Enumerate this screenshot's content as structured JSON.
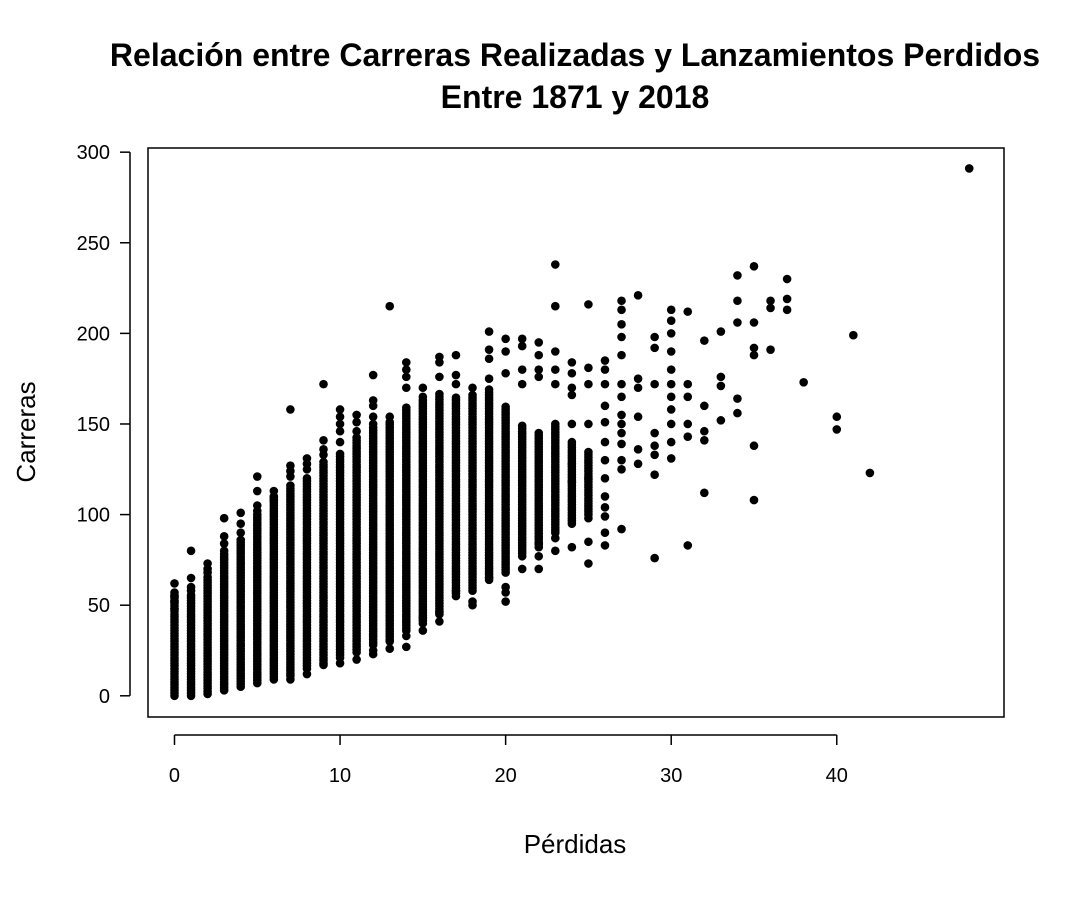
{
  "chart_data": {
    "type": "scatter",
    "title": [
      "Relación entre Carreras Realizadas y Lanzamientos Perdidos",
      "Entre 1871 y 2018"
    ],
    "xlabel": "Pérdidas",
    "ylabel": "Carreras",
    "xlim": [
      -1.6,
      50.1
    ],
    "ylim": [
      -11.7,
      302.3
    ],
    "xticks": [
      0,
      10,
      20,
      30,
      40
    ],
    "yticks": [
      0,
      50,
      100,
      150,
      200,
      250,
      300
    ],
    "grid": false,
    "point_color": "#000000",
    "dense_bands": [
      {
        "x": 0,
        "ymin": 0,
        "ymax": 58
      },
      {
        "x": 1,
        "ymin": 0,
        "ymax": 56
      },
      {
        "x": 2,
        "ymin": 1,
        "ymax": 66
      },
      {
        "x": 3,
        "ymin": 3,
        "ymax": 78
      },
      {
        "x": 4,
        "ymin": 5,
        "ymax": 86
      },
      {
        "x": 5,
        "ymin": 7,
        "ymax": 100
      },
      {
        "x": 6,
        "ymin": 9,
        "ymax": 110
      },
      {
        "x": 7,
        "ymin": 11,
        "ymax": 117
      },
      {
        "x": 8,
        "ymin": 15,
        "ymax": 121
      },
      {
        "x": 9,
        "ymin": 18,
        "ymax": 130
      },
      {
        "x": 10,
        "ymin": 21,
        "ymax": 134
      },
      {
        "x": 11,
        "ymin": 24,
        "ymax": 143
      },
      {
        "x": 12,
        "ymin": 28,
        "ymax": 148
      },
      {
        "x": 13,
        "ymin": 31,
        "ymax": 151
      },
      {
        "x": 14,
        "ymin": 36,
        "ymax": 160
      },
      {
        "x": 15,
        "ymin": 40,
        "ymax": 163
      },
      {
        "x": 16,
        "ymin": 45,
        "ymax": 167
      },
      {
        "x": 17,
        "ymin": 55,
        "ymax": 165
      },
      {
        "x": 18,
        "ymin": 58,
        "ymax": 166
      },
      {
        "x": 19,
        "ymin": 64,
        "ymax": 170
      },
      {
        "x": 20,
        "ymin": 68,
        "ymax": 160
      },
      {
        "x": 21,
        "ymin": 77,
        "ymax": 150
      },
      {
        "x": 22,
        "ymin": 82,
        "ymax": 145
      },
      {
        "x": 23,
        "ymin": 90,
        "ymax": 150
      },
      {
        "x": 24,
        "ymin": 95,
        "ymax": 140
      },
      {
        "x": 25,
        "ymin": 100,
        "ymax": 135
      }
    ],
    "points": [
      [
        0,
        62
      ],
      [
        0,
        55
      ],
      [
        0,
        52
      ],
      [
        0,
        48
      ],
      [
        1,
        80
      ],
      [
        1,
        65
      ],
      [
        1,
        60
      ],
      [
        1,
        58
      ],
      [
        2,
        73
      ],
      [
        2,
        70
      ],
      [
        2,
        68
      ],
      [
        3,
        98
      ],
      [
        3,
        88
      ],
      [
        3,
        84
      ],
      [
        3,
        80
      ],
      [
        4,
        101
      ],
      [
        4,
        95
      ],
      [
        4,
        90
      ],
      [
        5,
        121
      ],
      [
        5,
        113
      ],
      [
        5,
        105
      ],
      [
        5,
        102
      ],
      [
        6,
        113
      ],
      [
        6,
        110
      ],
      [
        6,
        108
      ],
      [
        7,
        158
      ],
      [
        7,
        127
      ],
      [
        7,
        124
      ],
      [
        7,
        121
      ],
      [
        7,
        9
      ],
      [
        8,
        131
      ],
      [
        8,
        128
      ],
      [
        8,
        125
      ],
      [
        8,
        12
      ],
      [
        9,
        172
      ],
      [
        9,
        141
      ],
      [
        9,
        136
      ],
      [
        9,
        133
      ],
      [
        9,
        17
      ],
      [
        10,
        158
      ],
      [
        10,
        154
      ],
      [
        10,
        150
      ],
      [
        10,
        146
      ],
      [
        10,
        140
      ],
      [
        10,
        18
      ],
      [
        11,
        155
      ],
      [
        11,
        151
      ],
      [
        11,
        146
      ],
      [
        11,
        20
      ],
      [
        12,
        177
      ],
      [
        12,
        163
      ],
      [
        12,
        160
      ],
      [
        12,
        154
      ],
      [
        12,
        150
      ],
      [
        12,
        23
      ],
      [
        12,
        25
      ],
      [
        13,
        215
      ],
      [
        13,
        154
      ],
      [
        13,
        26
      ],
      [
        13,
        30
      ],
      [
        14,
        184
      ],
      [
        14,
        180
      ],
      [
        14,
        176
      ],
      [
        14,
        170
      ],
      [
        14,
        27
      ],
      [
        14,
        33
      ],
      [
        15,
        170
      ],
      [
        15,
        165
      ],
      [
        15,
        36
      ],
      [
        15,
        43
      ],
      [
        16,
        187
      ],
      [
        16,
        184
      ],
      [
        16,
        176
      ],
      [
        16,
        41
      ],
      [
        16,
        46
      ],
      [
        17,
        188
      ],
      [
        17,
        177
      ],
      [
        17,
        172
      ],
      [
        17,
        58
      ],
      [
        18,
        170
      ],
      [
        18,
        52
      ],
      [
        18,
        50
      ],
      [
        19,
        201
      ],
      [
        19,
        191
      ],
      [
        19,
        186
      ],
      [
        19,
        175
      ],
      [
        19,
        65
      ],
      [
        20,
        197
      ],
      [
        20,
        190
      ],
      [
        20,
        178
      ],
      [
        20,
        60
      ],
      [
        20,
        57
      ],
      [
        20,
        52
      ],
      [
        21,
        197
      ],
      [
        21,
        193
      ],
      [
        21,
        180
      ],
      [
        21,
        172
      ],
      [
        21,
        70
      ],
      [
        22,
        195
      ],
      [
        22,
        188
      ],
      [
        22,
        180
      ],
      [
        22,
        176
      ],
      [
        22,
        84
      ],
      [
        22,
        77
      ],
      [
        22,
        70
      ],
      [
        23,
        238
      ],
      [
        23,
        215
      ],
      [
        23,
        190
      ],
      [
        23,
        180
      ],
      [
        23,
        172
      ],
      [
        23,
        87
      ],
      [
        23,
        80
      ],
      [
        24,
        184
      ],
      [
        24,
        178
      ],
      [
        24,
        170
      ],
      [
        24,
        166
      ],
      [
        24,
        150
      ],
      [
        24,
        128
      ],
      [
        24,
        118
      ],
      [
        24,
        82
      ],
      [
        25,
        216
      ],
      [
        25,
        181
      ],
      [
        25,
        172
      ],
      [
        25,
        150
      ],
      [
        25,
        120
      ],
      [
        25,
        98
      ],
      [
        25,
        85
      ],
      [
        25,
        73
      ],
      [
        26,
        185
      ],
      [
        26,
        180
      ],
      [
        26,
        172
      ],
      [
        26,
        160
      ],
      [
        26,
        151
      ],
      [
        26,
        140
      ],
      [
        26,
        130
      ],
      [
        26,
        120
      ],
      [
        26,
        110
      ],
      [
        26,
        104
      ],
      [
        26,
        99
      ],
      [
        26,
        90
      ],
      [
        26,
        83
      ],
      [
        27,
        218
      ],
      [
        27,
        213
      ],
      [
        27,
        205
      ],
      [
        27,
        198
      ],
      [
        27,
        188
      ],
      [
        27,
        172
      ],
      [
        27,
        165
      ],
      [
        27,
        155
      ],
      [
        27,
        150
      ],
      [
        27,
        145
      ],
      [
        27,
        139
      ],
      [
        27,
        130
      ],
      [
        27,
        125
      ],
      [
        27,
        92
      ],
      [
        28,
        221
      ],
      [
        28,
        175
      ],
      [
        28,
        170
      ],
      [
        28,
        154
      ],
      [
        28,
        136
      ],
      [
        28,
        128
      ],
      [
        29,
        198
      ],
      [
        29,
        192
      ],
      [
        29,
        172
      ],
      [
        29,
        145
      ],
      [
        29,
        138
      ],
      [
        29,
        133
      ],
      [
        29,
        122
      ],
      [
        29,
        76
      ],
      [
        30,
        213
      ],
      [
        30,
        207
      ],
      [
        30,
        200
      ],
      [
        30,
        190
      ],
      [
        30,
        180
      ],
      [
        30,
        172
      ],
      [
        30,
        165
      ],
      [
        30,
        158
      ],
      [
        30,
        150
      ],
      [
        30,
        140
      ],
      [
        30,
        131
      ],
      [
        31,
        212
      ],
      [
        31,
        172
      ],
      [
        31,
        165
      ],
      [
        31,
        150
      ],
      [
        31,
        143
      ],
      [
        31,
        83
      ],
      [
        32,
        196
      ],
      [
        32,
        160
      ],
      [
        32,
        146
      ],
      [
        32,
        141
      ],
      [
        32,
        112
      ],
      [
        33,
        201
      ],
      [
        33,
        176
      ],
      [
        33,
        171
      ],
      [
        33,
        152
      ],
      [
        34,
        232
      ],
      [
        34,
        218
      ],
      [
        34,
        206
      ],
      [
        34,
        164
      ],
      [
        34,
        156
      ],
      [
        35,
        237
      ],
      [
        35,
        206
      ],
      [
        35,
        192
      ],
      [
        35,
        188
      ],
      [
        35,
        138
      ],
      [
        35,
        108
      ],
      [
        36,
        218
      ],
      [
        36,
        214
      ],
      [
        36,
        191
      ],
      [
        37,
        230
      ],
      [
        37,
        219
      ],
      [
        37,
        213
      ],
      [
        38,
        173
      ],
      [
        40,
        154
      ],
      [
        40,
        147
      ],
      [
        41,
        199
      ],
      [
        42,
        123
      ],
      [
        48,
        291
      ]
    ]
  }
}
